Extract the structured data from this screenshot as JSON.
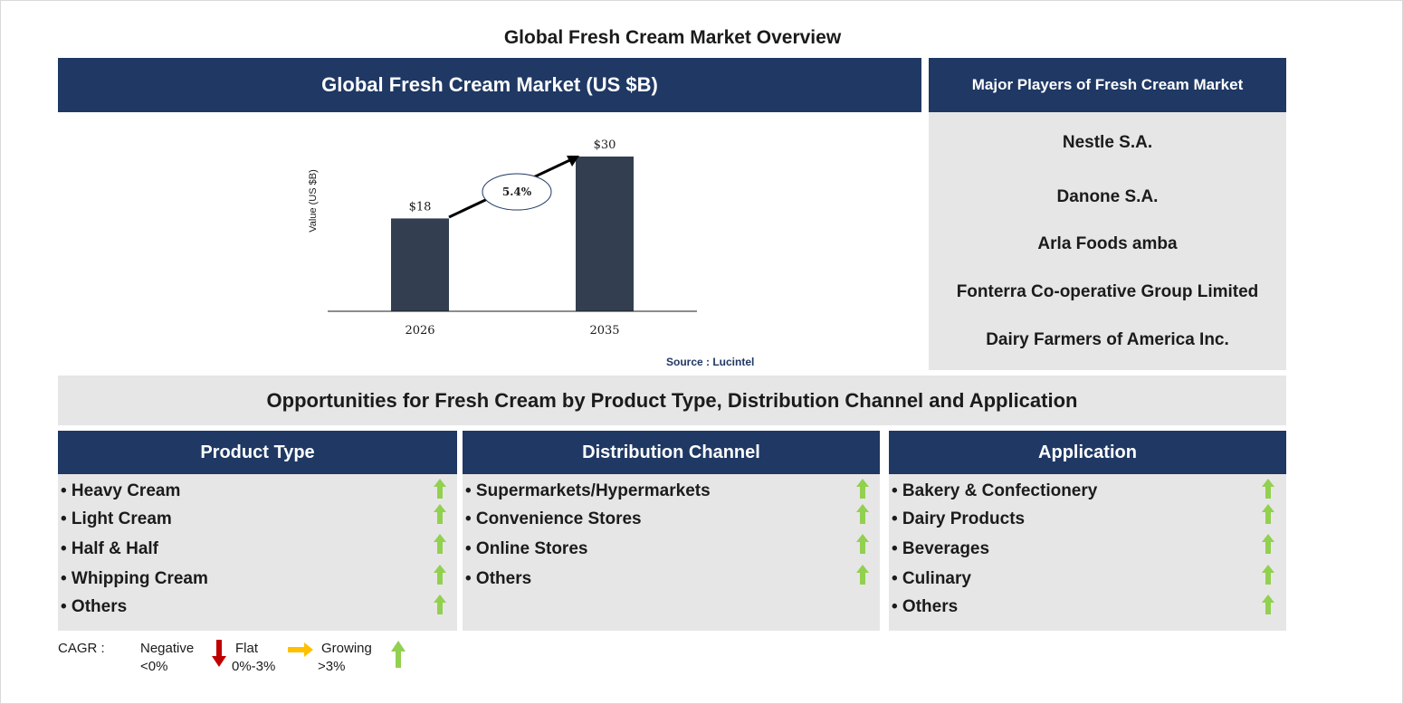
{
  "title": "Global Fresh Cream Market Overview",
  "chart_header": "Global Fresh Cream Market (US $B)",
  "chart_data": {
    "type": "bar",
    "categories": [
      "2026",
      "2035"
    ],
    "values": [
      18,
      30
    ],
    "value_labels": [
      "$18",
      "$30"
    ],
    "ylabel": "Value (US $B)",
    "cagr_label": "5.4%",
    "ylim": [
      0,
      30
    ],
    "grid": false,
    "bar_color": "#333f50"
  },
  "source": "Source : Lucintel",
  "players": {
    "header": "Major Players of Fresh Cream Market",
    "items": [
      "Nestle S.A.",
      "Danone S.A.",
      "Arla Foods amba",
      "Fonterra Co-operative Group Limited",
      "Dairy Farmers of America Inc."
    ]
  },
  "opportunities_title": "Opportunities for Fresh Cream by Product Type, Distribution Channel and Application",
  "segments": [
    {
      "header": "Product Type",
      "items": [
        "• Heavy Cream",
        "• Light Cream",
        "• Half & Half",
        "• Whipping Cream",
        "• Others"
      ],
      "trend_icon": "up-arrow-icon"
    },
    {
      "header": "Distribution Channel",
      "items": [
        "• Supermarkets/Hypermarkets",
        "• Convenience Stores",
        "• Online Stores",
        "• Others"
      ],
      "trend_icon": "up-arrow-icon"
    },
    {
      "header": "Application",
      "items": [
        "• Bakery & Confectionery",
        "• Dairy Products",
        "• Beverages",
        "• Culinary",
        "• Others"
      ],
      "trend_icon": "up-arrow-icon"
    }
  ],
  "legend": {
    "label": "CAGR :",
    "negative": {
      "name": "Negative",
      "range": "<0%",
      "color": "#c00000"
    },
    "flat": {
      "name": "Flat",
      "range": "0%-3%",
      "color": "#ffc000"
    },
    "growing": {
      "name": "Growing",
      "range": ">3%",
      "color": "#92d050"
    }
  },
  "colors": {
    "navy": "#1f3864",
    "panel": "#e7e6e6",
    "bar": "#333f50",
    "up_arrow": "#92d050"
  }
}
